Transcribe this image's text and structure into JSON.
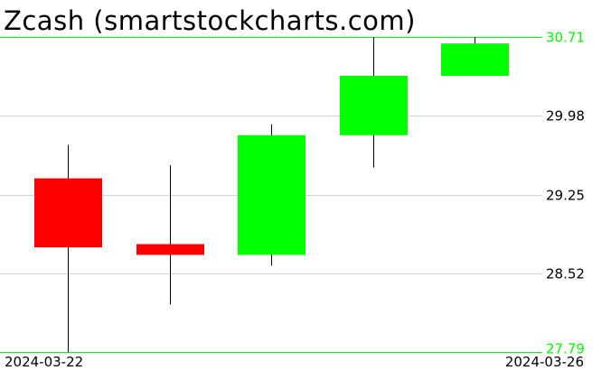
{
  "chart_data": {
    "type": "candlestick",
    "title": "Zcash (smartstockcharts.com)",
    "ylim": [
      27.79,
      30.71
    ],
    "y_ticks": [
      "30.71",
      "29.98",
      "29.25",
      "28.52",
      "27.79"
    ],
    "x_tick_labels": [
      "2024-03-22",
      "2024-03-26"
    ],
    "grid": true,
    "colors": {
      "up": "#00ff00",
      "down": "#ff0000",
      "range_line": "#00ff00",
      "grid": "#d3d3d3",
      "wick": "#000000"
    },
    "candles": [
      {
        "open": 29.4,
        "high": 29.71,
        "low": 27.79,
        "close": 28.76
      },
      {
        "open": 28.79,
        "high": 29.52,
        "low": 28.23,
        "close": 28.69
      },
      {
        "open": 28.69,
        "high": 29.9,
        "low": 28.59,
        "close": 29.8
      },
      {
        "open": 29.8,
        "high": 30.71,
        "low": 29.5,
        "close": 30.35
      },
      {
        "open": 30.35,
        "high": 30.71,
        "low": 30.35,
        "close": 30.65
      }
    ]
  }
}
